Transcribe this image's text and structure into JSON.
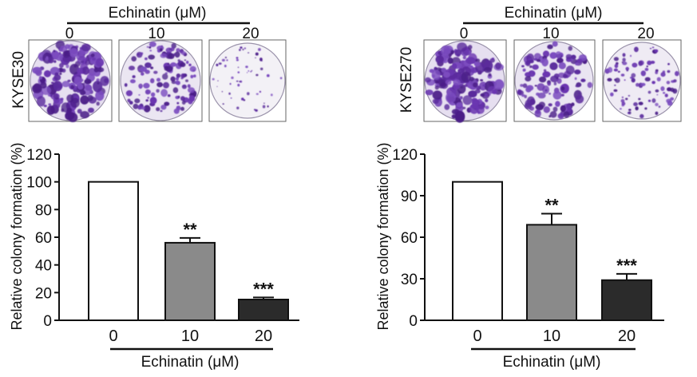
{
  "figure": {
    "panels": [
      {
        "header": "Echinatin (μM)",
        "cell_line": "KYSE30",
        "concentrations": [
          "0",
          "10",
          "20"
        ]
      },
      {
        "header": "Echinatin (μM)",
        "cell_line": "KYSE270",
        "concentrations": [
          "0",
          "10",
          "20"
        ]
      }
    ]
  },
  "chart_data": [
    {
      "type": "bar",
      "title": "",
      "xlabel": "Echinatin (μM)",
      "ylabel": "Relative colony formation (%)",
      "categories": [
        "0",
        "10",
        "20"
      ],
      "values": [
        100,
        56,
        15
      ],
      "error": [
        0,
        3.5,
        1.5
      ],
      "annotations": [
        "",
        "**",
        "***"
      ],
      "ylim": [
        0,
        120
      ],
      "yticks": [
        0,
        20,
        40,
        60,
        80,
        100,
        120
      ],
      "bar_colors": [
        "#ffffff",
        "#8a8a8a",
        "#2b2b2b"
      ],
      "grid": false
    },
    {
      "type": "bar",
      "title": "",
      "xlabel": "Echinatin (μM)",
      "ylabel": "Relative colony formation (%)",
      "categories": [
        "0",
        "10",
        "20"
      ],
      "values": [
        100,
        69,
        29
      ],
      "error": [
        0,
        8,
        4.5
      ],
      "annotations": [
        "",
        "**",
        "***"
      ],
      "ylim": [
        0,
        120
      ],
      "yticks": [
        0,
        30,
        60,
        90,
        120
      ],
      "bar_colors": [
        "#ffffff",
        "#8a8a8a",
        "#2b2b2b"
      ],
      "grid": false
    }
  ]
}
